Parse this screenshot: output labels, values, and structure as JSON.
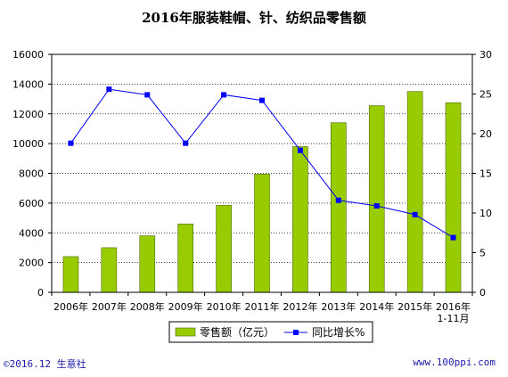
{
  "title": "2016年服装鞋帽、针、纺织品零售额",
  "footer": {
    "left": "©2016.12 生意社",
    "right": "www.100ppi.com"
  },
  "colors": {
    "bar": "#99cc00",
    "bar_edge": "#4d6600",
    "line": "#0000ff",
    "axis": "#000000",
    "grid": "#000000"
  },
  "chart_data": {
    "type": "bar",
    "categories": [
      "2006年",
      "2007年",
      "2008年",
      "2009年",
      "2010年",
      "2011年",
      "2012年",
      "2013年",
      "2014年",
      "2015年",
      "2016年\n1-11月"
    ],
    "series": [
      {
        "name": "零售额（亿元）",
        "type": "bar",
        "axis": "left",
        "values": [
          2400,
          3000,
          3800,
          4600,
          5850,
          7950,
          9800,
          11400,
          12550,
          13500,
          12750
        ]
      },
      {
        "name": "同比增长%",
        "type": "line",
        "axis": "right",
        "values": [
          18.8,
          25.6,
          24.9,
          18.8,
          24.9,
          24.2,
          17.9,
          11.6,
          10.9,
          9.8,
          6.9
        ]
      }
    ],
    "ylim_left": [
      0,
      16000
    ],
    "ylim_right": [
      0,
      30
    ],
    "yticks_left": [
      "0",
      "2000",
      "4000",
      "6000",
      "8000",
      "10000",
      "12000",
      "14000",
      "16000"
    ],
    "yticks_right": [
      "0",
      "5",
      "10",
      "15",
      "20",
      "25",
      "30"
    ],
    "grid": "horizontal dotted",
    "legend_position": "bottom"
  }
}
